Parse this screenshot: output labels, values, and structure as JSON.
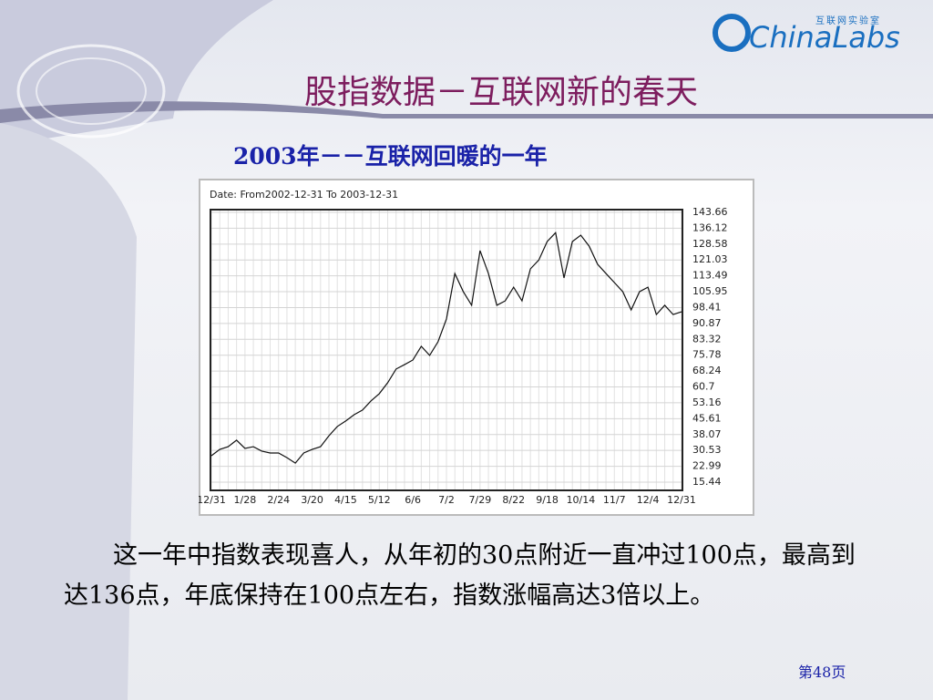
{
  "logo": {
    "cn": "互联网实验室",
    "en": "ChinaLabs"
  },
  "title": "股指数据－互联网新的春天",
  "subtitle": "2003年－－互联网回暖的一年",
  "body": "这一年中指数表现喜人，从年初的30点附近一直冲过100点，最高到达136点，年底保持在100点左右，指数涨幅高达3倍以上。",
  "page_number": "第48页",
  "chart_data": {
    "type": "line",
    "title": "Date: From2002-12-31 To 2003-12-31",
    "color": "#111111",
    "grid": true,
    "categories": [
      "12/31",
      null,
      null,
      null,
      "1/28",
      null,
      null,
      null,
      "2/24",
      null,
      null,
      null,
      "3/20",
      null,
      null,
      null,
      "4/15",
      null,
      null,
      null,
      "5/12",
      null,
      null,
      null,
      "6/6",
      null,
      null,
      null,
      "7/2",
      null,
      null,
      null,
      "7/29",
      null,
      null,
      null,
      "8/22",
      null,
      null,
      null,
      "9/18",
      null,
      null,
      null,
      "10/14",
      null,
      null,
      null,
      "11/7",
      null,
      null,
      null,
      "12/4",
      null,
      null,
      null,
      "12/31"
    ],
    "values": [
      28,
      31,
      32.3,
      35.4,
      31.5,
      32.3,
      30.2,
      29.3,
      29.3,
      27.1,
      24.5,
      29.3,
      31,
      32.3,
      37.5,
      41.9,
      44.5,
      47.5,
      49.7,
      54,
      57.5,
      62.7,
      69.2,
      71.3,
      73.5,
      80,
      75.7,
      82.2,
      93,
      114.6,
      106,
      99.5,
      125.5,
      114.6,
      99.5,
      101.6,
      108.1,
      101.6,
      116.8,
      121,
      129.8,
      134,
      112.5,
      129.8,
      132.8,
      127.6,
      119,
      114.6,
      110.3,
      106,
      97.3,
      106,
      108.1,
      95.1,
      99.5,
      95.1,
      96.4
    ],
    "ylim": [
      15.44,
      143.66
    ],
    "yticks": [
      143.66,
      136.12,
      128.58,
      121.03,
      113.49,
      105.95,
      98.41,
      90.87,
      83.32,
      75.78,
      68.24,
      60.7,
      53.16,
      45.61,
      38.07,
      30.53,
      22.99,
      15.44
    ]
  }
}
